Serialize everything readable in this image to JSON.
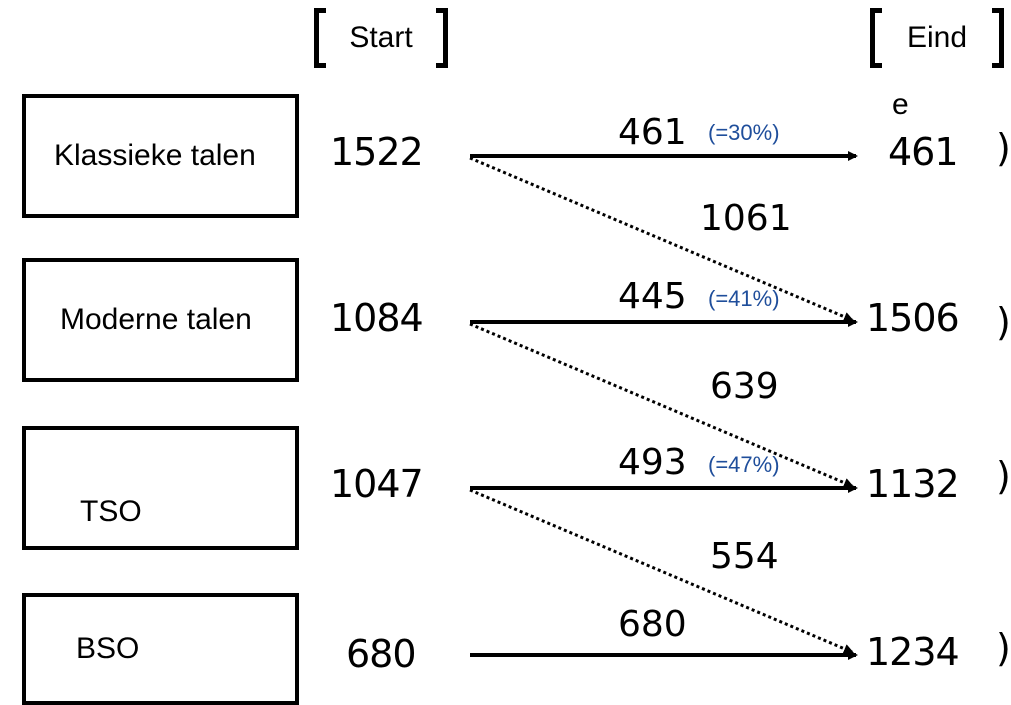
{
  "headers": {
    "start": "Start",
    "end": "Eind",
    "end_wrap": "e"
  },
  "rows": [
    {
      "label": "Klassieke talen",
      "start": "1522",
      "end": "461"
    },
    {
      "label": "Moderne talen",
      "start": "1084",
      "end": "1506"
    },
    {
      "label": "TSO",
      "start": "1047",
      "end": "1132"
    },
    {
      "label": "BSO",
      "start": "680",
      "end": "1234"
    }
  ],
  "flows": {
    "straight": [
      {
        "value": "461",
        "percent": "(=30%)"
      },
      {
        "value": "445",
        "percent": "(=41%)"
      },
      {
        "value": "493",
        "percent": "(=47%)"
      },
      {
        "value": "680",
        "percent": ""
      }
    ],
    "down": [
      {
        "value": "1061"
      },
      {
        "value": "639"
      },
      {
        "value": "554"
      }
    ]
  },
  "colors": {
    "percent_text": "#1f4e9b",
    "lines": "#000000"
  }
}
